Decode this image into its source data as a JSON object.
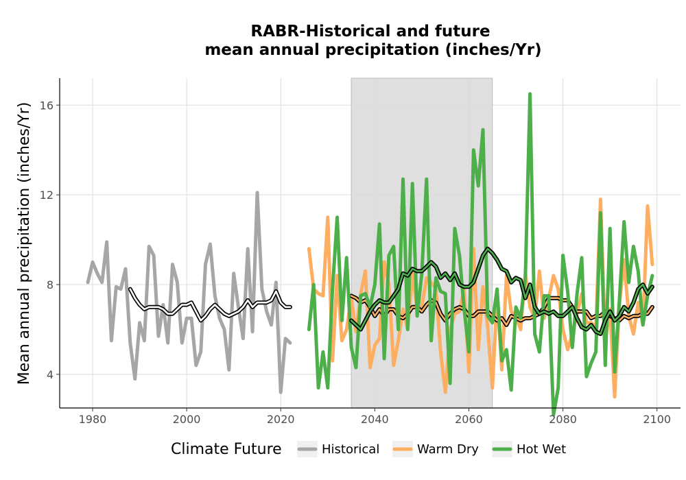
{
  "chart_data": {
    "type": "line",
    "title_lines": [
      "RABR-Historical and future",
      "mean annual precipitation (inches/Yr)"
    ],
    "xlabel": "",
    "ylabel": "Mean annual precipitation (inches/Yr)",
    "xlim": [
      1973,
      2105
    ],
    "ylim": [
      2.5,
      17.2
    ],
    "x_ticks": [
      1980,
      2000,
      2020,
      2040,
      2060,
      2080,
      2100
    ],
    "y_ticks": [
      4,
      8,
      12,
      16
    ],
    "grid": true,
    "shaded_period": [
      2035,
      2065
    ],
    "legend": {
      "title": "Climate Future",
      "placement": "bottom",
      "entries": [
        {
          "label": "Historical",
          "color": "#a6a6a6"
        },
        {
          "label": "Warm Dry",
          "color": "#fdae61"
        },
        {
          "label": "Hot Wet",
          "color": "#4daf4a"
        }
      ]
    },
    "series": [
      {
        "name": "Historical",
        "color": "#a6a6a6",
        "x": [
          1979,
          1980,
          1981,
          1982,
          1983,
          1984,
          1985,
          1986,
          1987,
          1988,
          1989,
          1990,
          1991,
          1992,
          1993,
          1994,
          1995,
          1996,
          1997,
          1998,
          1999,
          2000,
          2001,
          2002,
          2003,
          2004,
          2005,
          2006,
          2007,
          2008,
          2009,
          2010,
          2011,
          2012,
          2013,
          2014,
          2015,
          2016,
          2017,
          2018,
          2019,
          2020,
          2021,
          2022
        ],
        "values": [
          8.1,
          9.0,
          8.5,
          8.1,
          9.9,
          5.5,
          7.9,
          7.8,
          8.7,
          5.4,
          3.8,
          6.3,
          5.5,
          9.7,
          9.3,
          5.7,
          7.1,
          5.4,
          8.9,
          8.1,
          5.4,
          6.5,
          6.5,
          4.4,
          5.0,
          8.9,
          9.8,
          7.5,
          6.5,
          6.0,
          4.2,
          8.5,
          7.0,
          5.6,
          9.6,
          5.9,
          12.1,
          7.8,
          6.8,
          6.2,
          8.1,
          3.2,
          5.6,
          5.4
        ]
      },
      {
        "name": "Historical (running mean)",
        "color": "#000000",
        "x": [
          1988,
          1989,
          1990,
          1991,
          1992,
          1993,
          1994,
          1995,
          1996,
          1997,
          1998,
          1999,
          2000,
          2001,
          2002,
          2003,
          2004,
          2005,
          2006,
          2007,
          2008,
          2009,
          2010,
          2011,
          2012,
          2013,
          2014,
          2015,
          2016,
          2017,
          2018,
          2019,
          2020,
          2021,
          2022
        ],
        "values": [
          7.8,
          7.4,
          7.1,
          6.9,
          7.0,
          7.0,
          7.0,
          6.9,
          6.7,
          6.7,
          6.9,
          7.1,
          7.1,
          7.2,
          6.8,
          6.4,
          6.6,
          6.9,
          7.1,
          6.9,
          6.7,
          6.6,
          6.7,
          6.8,
          7.0,
          7.3,
          7.0,
          7.2,
          7.2,
          7.2,
          7.3,
          7.7,
          7.2,
          7.0,
          7.0
        ]
      },
      {
        "name": "Warm Dry",
        "color": "#fdae61",
        "x": [
          2026,
          2027,
          2028,
          2029,
          2030,
          2031,
          2032,
          2033,
          2034,
          2035,
          2036,
          2037,
          2038,
          2039,
          2040,
          2041,
          2042,
          2043,
          2044,
          2045,
          2046,
          2047,
          2048,
          2049,
          2050,
          2051,
          2052,
          2053,
          2054,
          2055,
          2056,
          2057,
          2058,
          2059,
          2060,
          2061,
          2062,
          2063,
          2064,
          2065,
          2066,
          2067,
          2068,
          2069,
          2070,
          2071,
          2072,
          2073,
          2074,
          2075,
          2076,
          2077,
          2078,
          2079,
          2080,
          2081,
          2082,
          2083,
          2084,
          2085,
          2086,
          2087,
          2088,
          2089,
          2090,
          2091,
          2092,
          2093,
          2094,
          2095,
          2096,
          2097,
          2098,
          2099
        ],
        "values": [
          9.6,
          7.8,
          7.6,
          7.5,
          11.0,
          4.6,
          8.4,
          5.5,
          6.0,
          7.4,
          5.9,
          7.6,
          8.6,
          4.3,
          5.3,
          5.6,
          9.0,
          8.0,
          4.4,
          5.5,
          6.9,
          6.0,
          8.5,
          6.9,
          7.0,
          8.3,
          8.1,
          7.8,
          5.0,
          3.2,
          6.0,
          6.7,
          6.8,
          7.8,
          4.1,
          9.6,
          5.1,
          7.9,
          6.1,
          3.4,
          7.5,
          4.2,
          8.4,
          6.8,
          6.6,
          6.0,
          8.5,
          7.0,
          6.5,
          8.6,
          6.5,
          7.4,
          8.4,
          7.8,
          6.0,
          5.1,
          5.8,
          6.7,
          7.6,
          6.3,
          6.3,
          6.1,
          11.8,
          5.5,
          6.9,
          3.0,
          7.1,
          9.1,
          6.6,
          5.8,
          7.2,
          6.2,
          11.5,
          8.9
        ]
      },
      {
        "name": "Warm Dry (running mean)",
        "color": "#000000",
        "x": [
          2035,
          2036,
          2037,
          2038,
          2039,
          2040,
          2041,
          2042,
          2043,
          2044,
          2045,
          2046,
          2047,
          2048,
          2049,
          2050,
          2051,
          2052,
          2053,
          2054,
          2055,
          2056,
          2057,
          2058,
          2059,
          2060,
          2061,
          2062,
          2063,
          2064,
          2065,
          2066,
          2067,
          2068,
          2069,
          2070,
          2071,
          2072,
          2073,
          2074,
          2075,
          2076,
          2077,
          2078,
          2079,
          2080,
          2081,
          2082,
          2083,
          2084,
          2085,
          2086,
          2087,
          2088,
          2089,
          2090,
          2091,
          2092,
          2093,
          2094,
          2095,
          2096,
          2097,
          2098,
          2099
        ],
        "values": [
          7.5,
          7.4,
          7.2,
          7.3,
          7.0,
          6.6,
          6.9,
          6.6,
          6.9,
          6.9,
          6.6,
          6.5,
          6.7,
          7.0,
          7.0,
          6.8,
          7.1,
          7.3,
          7.2,
          6.7,
          6.4,
          6.7,
          6.9,
          7.0,
          6.9,
          6.6,
          6.6,
          6.8,
          6.8,
          6.8,
          6.6,
          6.4,
          6.5,
          6.2,
          6.6,
          6.5,
          6.4,
          6.5,
          6.5,
          6.6,
          6.7,
          7.0,
          7.4,
          7.4,
          7.4,
          7.3,
          7.3,
          7.0,
          6.8,
          6.8,
          6.8,
          6.5,
          6.6,
          6.6,
          6.8,
          6.6,
          6.5,
          6.4,
          6.6,
          6.5,
          6.6,
          6.6,
          6.7,
          6.7,
          7.0
        ]
      },
      {
        "name": "Hot Wet",
        "color": "#4daf4a",
        "x": [
          2026,
          2027,
          2028,
          2029,
          2030,
          2031,
          2032,
          2033,
          2034,
          2035,
          2036,
          2037,
          2038,
          2039,
          2040,
          2041,
          2042,
          2043,
          2044,
          2045,
          2046,
          2047,
          2048,
          2049,
          2050,
          2051,
          2052,
          2053,
          2054,
          2055,
          2056,
          2057,
          2058,
          2059,
          2060,
          2061,
          2062,
          2063,
          2064,
          2065,
          2066,
          2067,
          2068,
          2069,
          2070,
          2071,
          2072,
          2073,
          2074,
          2075,
          2076,
          2077,
          2078,
          2079,
          2080,
          2081,
          2082,
          2083,
          2084,
          2085,
          2086,
          2087,
          2088,
          2089,
          2090,
          2091,
          2092,
          2093,
          2094,
          2095,
          2096,
          2097,
          2098,
          2099
        ],
        "values": [
          6.0,
          8.0,
          3.4,
          5.0,
          3.4,
          7.8,
          11.0,
          6.4,
          9.2,
          5.2,
          4.3,
          7.5,
          7.6,
          7.0,
          8.0,
          10.7,
          4.7,
          9.3,
          9.7,
          6.0,
          12.7,
          6.0,
          12.5,
          6.6,
          8.5,
          12.7,
          5.5,
          8.3,
          7.7,
          7.6,
          3.6,
          10.5,
          9.3,
          6.9,
          5.0,
          14.0,
          12.4,
          14.9,
          6.6,
          6.3,
          7.8,
          4.6,
          5.1,
          3.3,
          7.0,
          6.5,
          8.3,
          16.5,
          5.8,
          5.0,
          7.5,
          7.5,
          2.2,
          3.4,
          9.3,
          7.7,
          5.2,
          7.6,
          9.2,
          3.9,
          4.5,
          5.0,
          11.2,
          4.4,
          10.5,
          4.1,
          7.3,
          10.8,
          8.1,
          9.7,
          8.6,
          6.2,
          7.5,
          8.4
        ]
      },
      {
        "name": "Hot Wet (running mean)",
        "color": "#000000",
        "x": [
          2035,
          2036,
          2037,
          2038,
          2039,
          2040,
          2041,
          2042,
          2043,
          2044,
          2045,
          2046,
          2047,
          2048,
          2049,
          2050,
          2051,
          2052,
          2053,
          2054,
          2055,
          2056,
          2057,
          2058,
          2059,
          2060,
          2061,
          2062,
          2063,
          2064,
          2065,
          2066,
          2067,
          2068,
          2069,
          2070,
          2071,
          2072,
          2073,
          2074,
          2075,
          2076,
          2077,
          2078,
          2079,
          2080,
          2081,
          2082,
          2083,
          2084,
          2085,
          2086,
          2087,
          2088,
          2089,
          2090,
          2091,
          2092,
          2093,
          2094,
          2095,
          2096,
          2097,
          2098,
          2099
        ],
        "values": [
          6.4,
          6.2,
          6.0,
          6.4,
          6.8,
          7.1,
          7.3,
          7.2,
          7.2,
          7.5,
          7.8,
          8.5,
          8.4,
          8.7,
          8.6,
          8.6,
          8.8,
          9.0,
          8.8,
          8.3,
          8.5,
          8.2,
          8.5,
          8.0,
          7.9,
          7.9,
          8.1,
          8.7,
          9.3,
          9.6,
          9.4,
          9.1,
          8.7,
          8.6,
          8.1,
          8.3,
          8.2,
          7.4,
          8.0,
          7.0,
          6.7,
          6.8,
          6.7,
          6.8,
          6.6,
          6.6,
          6.8,
          7.0,
          6.5,
          6.1,
          6.0,
          6.2,
          5.9,
          5.8,
          6.4,
          6.8,
          6.4,
          6.6,
          7.0,
          6.8,
          7.2,
          7.8,
          8.0,
          7.6,
          7.9
        ]
      }
    ]
  }
}
